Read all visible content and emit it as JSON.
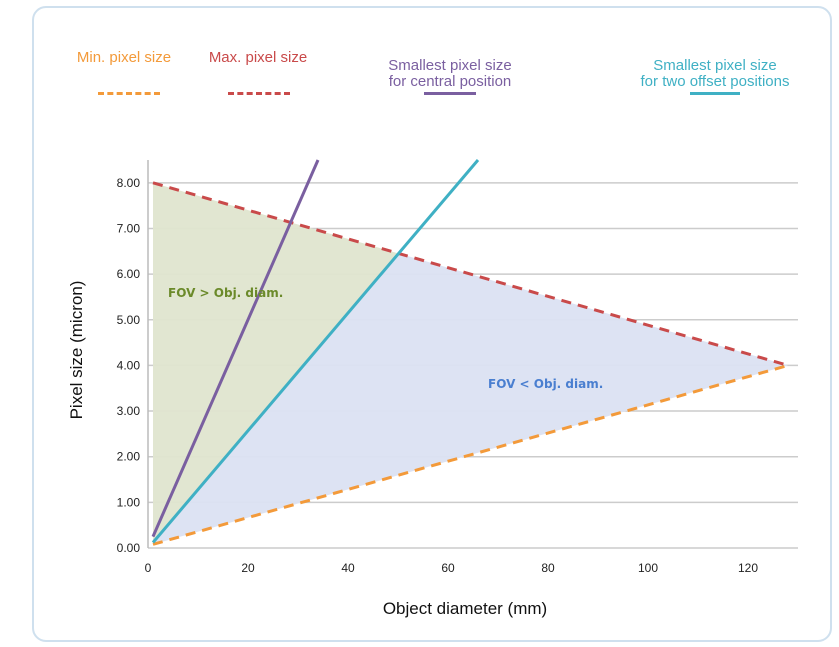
{
  "chart_data": {
    "type": "line",
    "xlabel": "Object diameter (mm)",
    "ylabel": "Pixel size (micron)",
    "xlim": [
      0,
      130
    ],
    "ylim": [
      0,
      8.5
    ],
    "x_ticks": [
      0,
      20,
      40,
      60,
      80,
      100,
      120
    ],
    "y_ticks": [
      "0.00",
      "1.00",
      "2.00",
      "3.00",
      "4.00",
      "5.00",
      "6.00",
      "7.00",
      "8.00"
    ],
    "grid": "horizontal",
    "legend_position": "top",
    "series": [
      {
        "name": "Min. pixel size",
        "color": "#f39a3a",
        "style": "dashed",
        "x": [
          1,
          128
        ],
        "y": [
          0.08,
          4.0
        ]
      },
      {
        "name": "Max. pixel size",
        "color": "#c94a4a",
        "style": "dashed",
        "x": [
          1,
          128
        ],
        "y": [
          8.0,
          4.0
        ]
      },
      {
        "name": "Smallest pixel size\nfor central position",
        "color": "#7a5fa0",
        "style": "solid",
        "x": [
          1,
          34
        ],
        "y": [
          0.25,
          8.5
        ]
      },
      {
        "name": "Smallest pixel size\nfor two offset positions",
        "color": "#3fb0c4",
        "style": "solid",
        "x": [
          1,
          66
        ],
        "y": [
          0.12,
          8.5
        ]
      }
    ],
    "regions": [
      {
        "label": "FOV > Obj. diam.",
        "color": "#dfe5cf",
        "text_color": "#6b8a2a",
        "label_x": 4,
        "label_y": 5.5
      },
      {
        "label": "FOV < Obj. diam.",
        "color": "#dbe2f2",
        "text_color": "#4a7fd0",
        "label_x": 68,
        "label_y": 3.5
      }
    ]
  }
}
